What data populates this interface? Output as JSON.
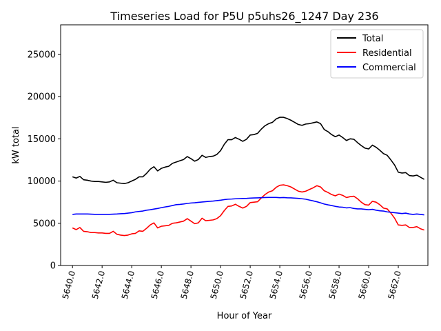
{
  "colors": {
    "total": "#000000",
    "residential": "#ff0000",
    "commercial": "#0000ff",
    "axes": "#000000",
    "background": "#ffffff"
  },
  "chart_data": {
    "type": "line",
    "title": "Timeseries Load for P5U p5uhs26_1247  Day 236",
    "xlabel": "Hour of Year",
    "ylabel": "kW total",
    "xlim": [
      5639.2,
      5664.0
    ],
    "ylim": [
      0,
      28500
    ],
    "xticks": [
      5640,
      5642,
      5644,
      5646,
      5648,
      5650,
      5652,
      5654,
      5656,
      5658,
      5660,
      5662
    ],
    "xtick_labels": [
      "5640.0",
      "5642.0",
      "5644.0",
      "5646.0",
      "5648.0",
      "5650.0",
      "5652.0",
      "5654.0",
      "5656.0",
      "5658.0",
      "5660.0",
      "5662.0"
    ],
    "yticks": [
      0,
      5000,
      10000,
      15000,
      20000,
      25000
    ],
    "ytick_labels": [
      "0",
      "5000",
      "10000",
      "15000",
      "20000",
      "25000"
    ],
    "grid": false,
    "legend_position": "top-right",
    "x": [
      5640.0,
      5640.25,
      5640.5,
      5640.75,
      5641.0,
      5641.25,
      5641.5,
      5641.75,
      5642.0,
      5642.25,
      5642.5,
      5642.75,
      5643.0,
      5643.25,
      5643.5,
      5643.75,
      5644.0,
      5644.25,
      5644.5,
      5644.75,
      5645.0,
      5645.25,
      5645.5,
      5645.75,
      5646.0,
      5646.25,
      5646.5,
      5646.75,
      5647.0,
      5647.25,
      5647.5,
      5647.75,
      5648.0,
      5648.25,
      5648.5,
      5648.75,
      5649.0,
      5649.25,
      5649.5,
      5649.75,
      5650.0,
      5650.25,
      5650.5,
      5650.75,
      5651.0,
      5651.25,
      5651.5,
      5651.75,
      5652.0,
      5652.25,
      5652.5,
      5652.75,
      5653.0,
      5653.25,
      5653.5,
      5653.75,
      5654.0,
      5654.25,
      5654.5,
      5654.75,
      5655.0,
      5655.25,
      5655.5,
      5655.75,
      5656.0,
      5656.25,
      5656.5,
      5656.75,
      5657.0,
      5657.25,
      5657.5,
      5657.75,
      5658.0,
      5658.25,
      5658.5,
      5658.75,
      5659.0,
      5659.25,
      5659.5,
      5659.75,
      5660.0,
      5660.25,
      5660.5,
      5660.75,
      5661.0,
      5661.25,
      5661.5,
      5661.75,
      5662.0,
      5662.25,
      5662.5,
      5662.75,
      5663.0,
      5663.25,
      5663.5,
      5663.75
    ],
    "series": [
      {
        "name": "Total",
        "color_key": "total",
        "values": [
          10500,
          10350,
          10550,
          10150,
          10100,
          10000,
          9950,
          9950,
          9900,
          9850,
          9900,
          10100,
          9800,
          9750,
          9700,
          9800,
          10000,
          10200,
          10500,
          10500,
          10900,
          11400,
          11700,
          11200,
          11500,
          11650,
          11750,
          12100,
          12250,
          12400,
          12550,
          12900,
          12650,
          12350,
          12550,
          13050,
          12800,
          12900,
          12950,
          13150,
          13600,
          14350,
          14900,
          14900,
          15150,
          14950,
          14700,
          14950,
          15450,
          15500,
          15650,
          16150,
          16550,
          16800,
          16950,
          17350,
          17550,
          17550,
          17400,
          17200,
          16950,
          16700,
          16600,
          16750,
          16800,
          16900,
          17000,
          16800,
          16100,
          15850,
          15500,
          15250,
          15450,
          15150,
          14800,
          15000,
          14950,
          14550,
          14200,
          13900,
          13800,
          14250,
          14000,
          13650,
          13250,
          13050,
          12500,
          11900,
          11050,
          10950,
          11000,
          10650,
          10600,
          10700,
          10450,
          10200
        ]
      },
      {
        "name": "Residential",
        "color_key": "residential",
        "values": [
          4450,
          4250,
          4500,
          4050,
          4000,
          3900,
          3900,
          3850,
          3850,
          3800,
          3800,
          4050,
          3700,
          3600,
          3550,
          3600,
          3750,
          3800,
          4100,
          4050,
          4400,
          4800,
          5050,
          4450,
          4650,
          4700,
          4750,
          5000,
          5050,
          5150,
          5250,
          5550,
          5250,
          4950,
          5050,
          5600,
          5300,
          5350,
          5400,
          5550,
          5900,
          6500,
          7000,
          7050,
          7250,
          7000,
          6800,
          7000,
          7450,
          7500,
          7550,
          8000,
          8400,
          8700,
          8850,
          9250,
          9500,
          9550,
          9450,
          9300,
          9050,
          8800,
          8700,
          8800,
          9000,
          9200,
          9450,
          9300,
          8850,
          8650,
          8400,
          8250,
          8450,
          8300,
          8050,
          8150,
          8200,
          7900,
          7500,
          7200,
          7150,
          7600,
          7500,
          7200,
          6800,
          6700,
          6200,
          5600,
          4800,
          4750,
          4800,
          4500,
          4500,
          4600,
          4350,
          4200
        ]
      },
      {
        "name": "Commercial",
        "color_key": "commercial",
        "values": [
          6050,
          6100,
          6100,
          6100,
          6100,
          6080,
          6060,
          6060,
          6060,
          6060,
          6060,
          6080,
          6100,
          6130,
          6150,
          6200,
          6250,
          6350,
          6400,
          6450,
          6550,
          6600,
          6680,
          6750,
          6850,
          6930,
          7000,
          7100,
          7200,
          7230,
          7280,
          7350,
          7400,
          7430,
          7480,
          7520,
          7560,
          7600,
          7630,
          7680,
          7730,
          7800,
          7850,
          7870,
          7900,
          7920,
          7940,
          7950,
          7980,
          8000,
          8010,
          8030,
          8050,
          8060,
          8060,
          8060,
          8030,
          8050,
          8020,
          8010,
          7980,
          7950,
          7900,
          7850,
          7750,
          7650,
          7550,
          7420,
          7280,
          7180,
          7100,
          7000,
          6930,
          6900,
          6820,
          6850,
          6750,
          6700,
          6700,
          6650,
          6600,
          6650,
          6550,
          6480,
          6450,
          6350,
          6300,
          6250,
          6200,
          6150,
          6200,
          6100,
          6050,
          6100,
          6050,
          6000
        ]
      }
    ]
  }
}
